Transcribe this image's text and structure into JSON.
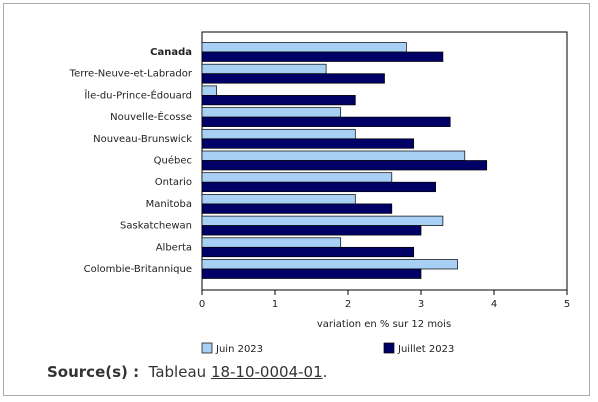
{
  "chart_data": {
    "type": "hbar",
    "categories": [
      "Canada",
      "Terre-Neuve-et-Labrador",
      "Île-du-Prince-Édouard",
      "Nouvelle-Écosse",
      "Nouveau-Brunswick",
      "Québec",
      "Ontario",
      "Manitoba",
      "Saskatchewan",
      "Alberta",
      "Colombie-Britannique"
    ],
    "series": [
      {
        "name": "Juin 2023",
        "color": "#a8d0f5",
        "values": [
          2.8,
          1.7,
          0.2,
          1.9,
          2.1,
          3.6,
          2.6,
          2.1,
          3.3,
          1.9,
          3.5
        ]
      },
      {
        "name": "Juillet 2023",
        "color": "#000066",
        "values": [
          3.3,
          2.5,
          2.1,
          3.4,
          2.9,
          3.9,
          3.2,
          2.6,
          3.0,
          2.9,
          3.0
        ]
      }
    ],
    "xlim": [
      0,
      5
    ],
    "xticks": [
      0,
      1,
      2,
      3,
      4,
      5
    ],
    "xlabel": "variation en % sur 12 mois"
  },
  "source": {
    "label": "Source(s) :",
    "text": "Tableau",
    "link": "18-10-0004-01",
    "end": "."
  }
}
